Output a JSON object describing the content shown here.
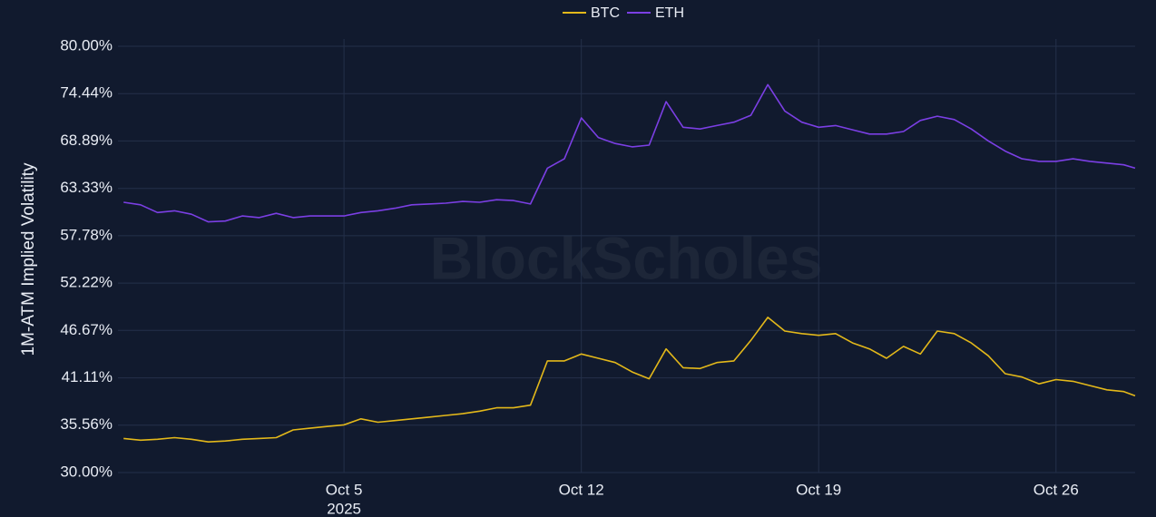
{
  "chart_data": {
    "type": "line",
    "watermark": "BlockScholes",
    "y_label": "1M-ATM Implied Volatility",
    "legend": "top",
    "grid": true,
    "x": [
      "2025-09-28T12:00",
      "2025-09-29T00:00",
      "2025-09-29T12:00",
      "2025-09-30T00:00",
      "2025-09-30T12:00",
      "2025-10-01T00:00",
      "2025-10-01T12:00",
      "2025-10-02T00:00",
      "2025-10-02T12:00",
      "2025-10-03T00:00",
      "2025-10-03T12:00",
      "2025-10-04T00:00",
      "2025-10-04T12:00",
      "2025-10-05T00:00",
      "2025-10-05T12:00",
      "2025-10-06T00:00",
      "2025-10-06T12:00",
      "2025-10-07T00:00",
      "2025-10-07T12:00",
      "2025-10-08T00:00",
      "2025-10-08T12:00",
      "2025-10-09T00:00",
      "2025-10-09T12:00",
      "2025-10-10T00:00",
      "2025-10-10T12:00",
      "2025-10-11T00:00",
      "2025-10-11T12:00",
      "2025-10-12T00:00",
      "2025-10-12T12:00",
      "2025-10-13T00:00",
      "2025-10-13T12:00",
      "2025-10-14T00:00",
      "2025-10-14T12:00",
      "2025-10-15T00:00",
      "2025-10-15T12:00",
      "2025-10-16T00:00",
      "2025-10-16T12:00",
      "2025-10-17T00:00",
      "2025-10-17T12:00",
      "2025-10-18T00:00",
      "2025-10-18T12:00",
      "2025-10-19T00:00",
      "2025-10-19T12:00",
      "2025-10-20T00:00",
      "2025-10-20T12:00",
      "2025-10-21T00:00",
      "2025-10-21T12:00",
      "2025-10-22T00:00",
      "2025-10-22T12:00",
      "2025-10-23T00:00",
      "2025-10-23T12:00",
      "2025-10-24T00:00",
      "2025-10-24T12:00",
      "2025-10-25T00:00",
      "2025-10-25T12:00",
      "2025-10-26T00:00",
      "2025-10-26T12:00",
      "2025-10-27T00:00",
      "2025-10-27T12:00",
      "2025-10-28T00:00",
      "2025-10-28T08:00"
    ],
    "series": [
      {
        "name": "BTC",
        "color": "#e3b81a",
        "values": [
          34.0,
          33.8,
          33.9,
          34.1,
          33.9,
          33.6,
          33.7,
          33.9,
          34.0,
          34.1,
          35.0,
          35.2,
          35.4,
          35.6,
          36.3,
          35.9,
          36.1,
          36.3,
          36.5,
          36.7,
          36.9,
          37.2,
          37.6,
          37.6,
          37.9,
          43.1,
          43.1,
          43.9,
          43.4,
          42.9,
          41.8,
          41.0,
          44.5,
          42.3,
          42.2,
          42.9,
          43.1,
          45.5,
          48.2,
          46.6,
          46.3,
          46.1,
          46.3,
          45.2,
          44.5,
          43.4,
          44.8,
          43.9,
          46.6,
          46.3,
          45.2,
          43.7,
          41.6,
          41.2,
          40.4,
          40.9,
          40.7,
          40.2,
          39.7,
          39.5,
          39.0
        ]
      },
      {
        "name": "ETH",
        "color": "#7b3fe4",
        "values": [
          61.7,
          61.4,
          60.5,
          60.7,
          60.3,
          59.4,
          59.5,
          60.1,
          59.9,
          60.4,
          59.9,
          60.1,
          60.1,
          60.1,
          60.5,
          60.7,
          61.0,
          61.4,
          61.5,
          61.6,
          61.8,
          61.7,
          62.0,
          61.9,
          61.5,
          65.7,
          66.8,
          71.6,
          69.3,
          68.6,
          68.2,
          68.4,
          73.5,
          70.5,
          70.3,
          70.7,
          71.1,
          71.9,
          75.5,
          72.4,
          71.1,
          70.5,
          70.7,
          70.2,
          69.7,
          69.7,
          70.0,
          71.3,
          71.8,
          71.4,
          70.3,
          68.9,
          67.7,
          66.8,
          66.5,
          66.5,
          66.8,
          66.5,
          66.3,
          66.1,
          65.7
        ]
      }
    ],
    "xlim": [
      "2025-09-28T08:00",
      "2025-10-28T08:00"
    ],
    "xticks": [
      {
        "value": "2025-10-05T00:00",
        "label": "Oct 5",
        "sublabel": "2025"
      },
      {
        "value": "2025-10-12T00:00",
        "label": "Oct 12"
      },
      {
        "value": "2025-10-19T00:00",
        "label": "Oct 19"
      },
      {
        "value": "2025-10-26T00:00",
        "label": "Oct 26"
      }
    ],
    "ylim": [
      30,
      80
    ],
    "yticks": [
      {
        "value": 30,
        "label": "30.00%"
      },
      {
        "value": 35.56,
        "label": "35.56%"
      },
      {
        "value": 41.11,
        "label": "41.11%"
      },
      {
        "value": 46.67,
        "label": "46.67%"
      },
      {
        "value": 52.22,
        "label": "52.22%"
      },
      {
        "value": 57.78,
        "label": "57.78%"
      },
      {
        "value": 63.33,
        "label": "63.33%"
      },
      {
        "value": 68.89,
        "label": "68.89%"
      },
      {
        "value": 74.44,
        "label": "74.44%"
      },
      {
        "value": 80,
        "label": "80.00%"
      }
    ]
  }
}
